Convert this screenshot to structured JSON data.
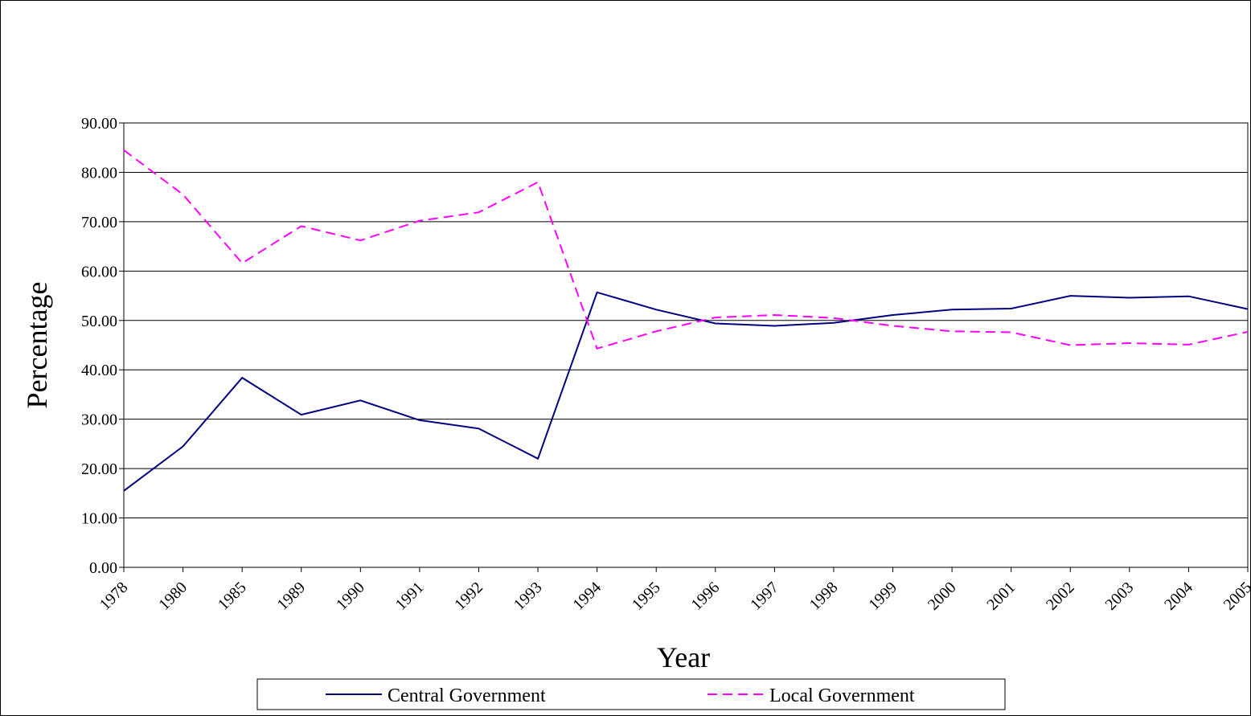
{
  "chart_data": {
    "type": "line",
    "title": "",
    "xlabel": "Year",
    "ylabel": "Percentage",
    "ylim": [
      0,
      90
    ],
    "yticks": [
      "0.00",
      "10.00",
      "20.00",
      "30.00",
      "40.00",
      "50.00",
      "60.00",
      "70.00",
      "80.00",
      "90.00"
    ],
    "grid": "horizontal",
    "legend_position": "bottom",
    "categories": [
      "1978",
      "1980",
      "1985",
      "1989",
      "1990",
      "1991",
      "1992",
      "1993",
      "1994",
      "1995",
      "1996",
      "1997",
      "1998",
      "1999",
      "2000",
      "2001",
      "2002",
      "2003",
      "2004",
      "2005"
    ],
    "series": [
      {
        "name": "Central Government",
        "color": "#000080",
        "style": "solid",
        "values": [
          15.5,
          24.5,
          38.4,
          30.9,
          33.8,
          29.8,
          28.1,
          22.0,
          55.7,
          52.2,
          49.4,
          48.9,
          49.5,
          51.1,
          52.2,
          52.4,
          55.0,
          54.6,
          54.9,
          52.3
        ]
      },
      {
        "name": "Local Government",
        "color": "#ff00ff",
        "style": "dashed",
        "values": [
          84.5,
          75.5,
          61.6,
          69.1,
          66.2,
          70.2,
          71.9,
          78.0,
          44.3,
          47.8,
          50.6,
          51.1,
          50.5,
          48.9,
          47.8,
          47.6,
          45.0,
          45.4,
          45.1,
          47.7
        ]
      }
    ]
  }
}
